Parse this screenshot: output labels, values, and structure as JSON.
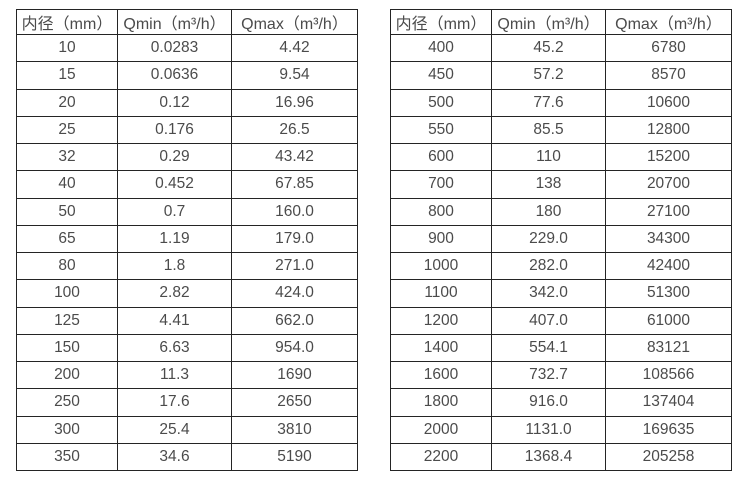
{
  "page": {
    "background_color": "#ffffff",
    "text_color": "#4b4b4b",
    "border_color": "#242424"
  },
  "tables": [
    {
      "id": "flow-rate-table-small-diameters",
      "headers": [
        "内径（mm）",
        "Qmin（m³/h）",
        "Qmax（m³/h）"
      ],
      "rows": [
        [
          "10",
          "0.0283",
          "4.42"
        ],
        [
          "15",
          "0.0636",
          "9.54"
        ],
        [
          "20",
          "0.12",
          "16.96"
        ],
        [
          "25",
          "0.176",
          "26.5"
        ],
        [
          "32",
          "0.29",
          "43.42"
        ],
        [
          "40",
          "0.452",
          "67.85"
        ],
        [
          "50",
          "0.7",
          "160.0"
        ],
        [
          "65",
          "1.19",
          "179.0"
        ],
        [
          "80",
          "1.8",
          "271.0"
        ],
        [
          "100",
          "2.82",
          "424.0"
        ],
        [
          "125",
          "4.41",
          "662.0"
        ],
        [
          "150",
          "6.63",
          "954.0"
        ],
        [
          "200",
          "11.3",
          "1690"
        ],
        [
          "250",
          "17.6",
          "2650"
        ],
        [
          "300",
          "25.4",
          "3810"
        ],
        [
          "350",
          "34.6",
          "5190"
        ]
      ]
    },
    {
      "id": "flow-rate-table-large-diameters",
      "headers": [
        "内径（mm）",
        "Qmin（m³/h）",
        "Qmax（m³/h）"
      ],
      "rows": [
        [
          "400",
          "45.2",
          "6780"
        ],
        [
          "450",
          "57.2",
          "8570"
        ],
        [
          "500",
          "77.6",
          "10600"
        ],
        [
          "550",
          "85.5",
          "12800"
        ],
        [
          "600",
          "110",
          "15200"
        ],
        [
          "700",
          "138",
          "20700"
        ],
        [
          "800",
          "180",
          "27100"
        ],
        [
          "900",
          "229.0",
          "34300"
        ],
        [
          "1000",
          "282.0",
          "42400"
        ],
        [
          "1100",
          "342.0",
          "51300"
        ],
        [
          "1200",
          "407.0",
          "61000"
        ],
        [
          "1400",
          "554.1",
          "83121"
        ],
        [
          "1600",
          "732.7",
          "108566"
        ],
        [
          "1800",
          "916.0",
          "137404"
        ],
        [
          "2000",
          "1131.0",
          "169635"
        ],
        [
          "2200",
          "1368.4",
          "205258"
        ]
      ]
    }
  ]
}
